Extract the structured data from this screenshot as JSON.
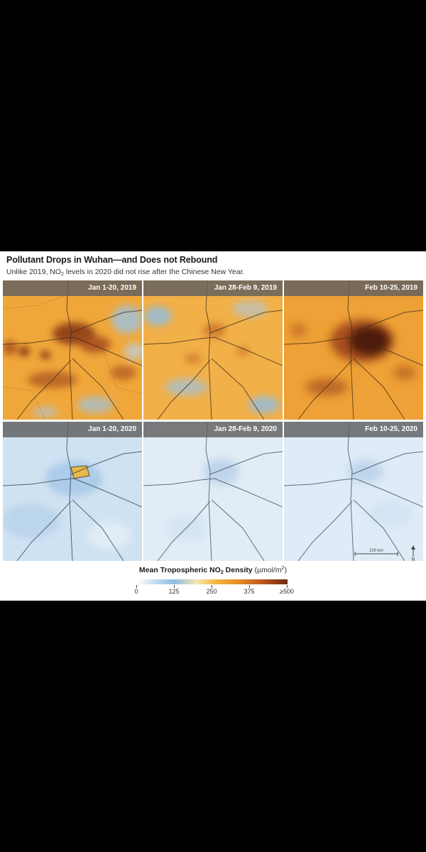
{
  "title": "Pollutant Drops in Wuhan—and Does not Rebound",
  "subtitle": {
    "pre": "Unlike 2019, NO",
    "sub": "2",
    "post": " levels in 2020 did not rise after the Chinese New Year."
  },
  "panels": [
    {
      "label": "Jan 1-20, 2019",
      "level": "high"
    },
    {
      "label": "Jan 28-Feb 9, 2019",
      "level": "medium"
    },
    {
      "label": "Feb 10-25, 2019",
      "level": "very-high"
    },
    {
      "label": "Jan 1-20, 2020",
      "level": "low-with-hotspot"
    },
    {
      "label": "Jan 28-Feb 9, 2020",
      "level": "very-low"
    },
    {
      "label": "Feb 10-25, 2020",
      "level": "very-low"
    }
  ],
  "legend": {
    "title_pre": "Mean Tropospheric NO",
    "title_sub": "2",
    "title_post": " Density",
    "unit_pre": "(µmol/m",
    "unit_sup": "2",
    "unit_post": ")",
    "ticks": [
      "0",
      "125",
      "250",
      "375",
      "≥500"
    ]
  },
  "scale_bar": "100 km",
  "north_label": "N",
  "colors": {
    "orange": "#f0a73a",
    "dark_brown": "#6e2a10",
    "light_blue": "#d9e8f4",
    "blue": "#8fbde4"
  }
}
